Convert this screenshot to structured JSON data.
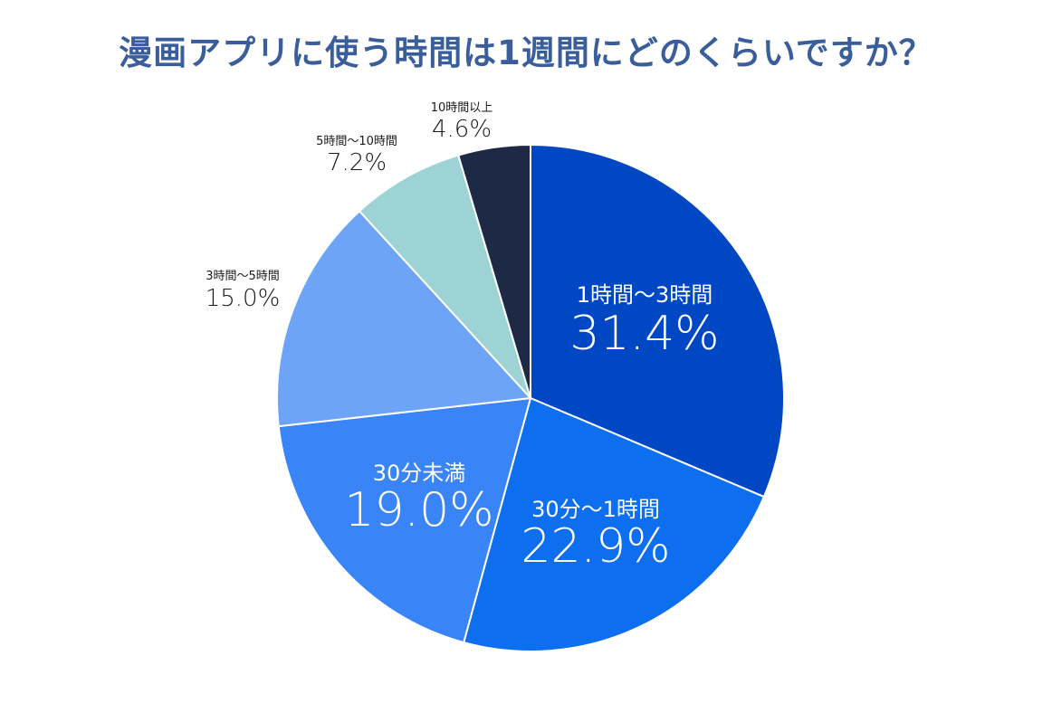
{
  "chart_data": {
    "type": "pie",
    "title": "漫画アプリに使う時間は1週間にどのくらいですか？",
    "start_angle_deg": 0,
    "direction": "clockwise",
    "slices": [
      {
        "label": "1時間〜3時間",
        "value": 31.4,
        "value_text": "31.4%",
        "color": "#0047c4",
        "label_placement": "inside",
        "text_color": "#ffffff"
      },
      {
        "label": "30分〜1時間",
        "value": 22.9,
        "value_text": "22.9%",
        "color": "#0d6ef0",
        "label_placement": "inside",
        "text_color": "#ffffff"
      },
      {
        "label": "30分未満",
        "value": 19.0,
        "value_text": "19.0%",
        "color": "#3984f6",
        "label_placement": "inside",
        "text_color": "#ffffff"
      },
      {
        "label": "3時間〜5時間",
        "value": 15.0,
        "value_text": "15.0%",
        "color": "#6da4f7",
        "label_placement": "outside",
        "text_color": "#1a1a1a"
      },
      {
        "label": "5時間〜10時間",
        "value": 7.2,
        "value_text": "7.2%",
        "color": "#9dd3d4",
        "label_placement": "outside",
        "text_color": "#1a1a1a"
      },
      {
        "label": "10時間以上",
        "value": 4.6,
        "value_text": "4.6%",
        "color": "#1e2a45",
        "label_placement": "outside",
        "text_color": "#1a1a1a"
      }
    ]
  }
}
